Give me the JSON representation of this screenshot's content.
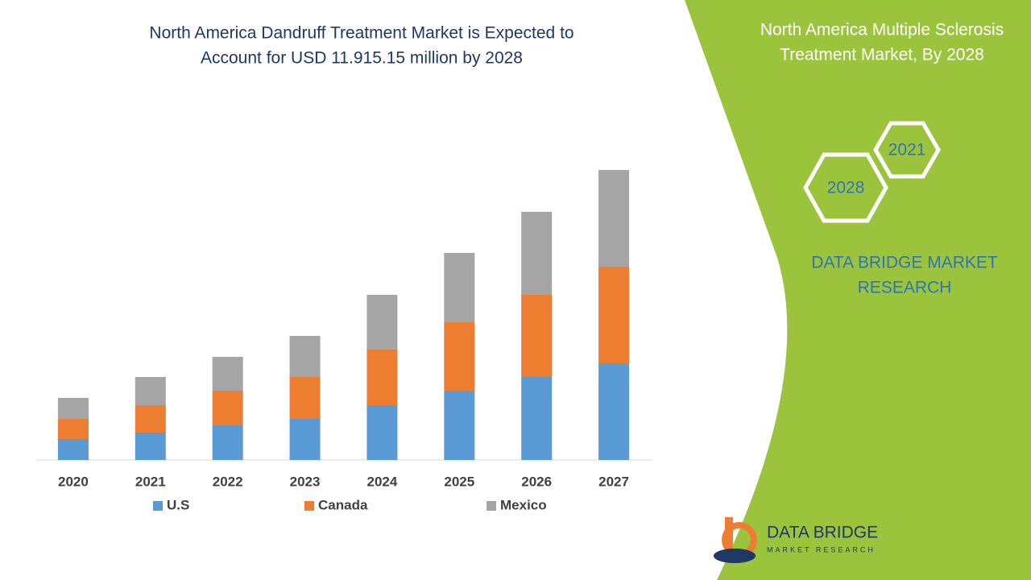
{
  "chart_data": {
    "type": "stacked_bar",
    "title": [
      "North America Dandruff Treatment Market is Expected to",
      "Account for USD 11.915.15 million by 2028"
    ],
    "categories": [
      "2020",
      "2021",
      "2022",
      "2023",
      "2024",
      "2025",
      "2026",
      "2027"
    ],
    "series": [
      {
        "name": "U.S",
        "color": "#5b9bd5",
        "values": [
          26,
          34,
          43,
          51,
          68,
          86,
          103,
          120
        ]
      },
      {
        "name": "Canada",
        "color": "#ed7d31",
        "values": [
          25,
          34,
          43,
          52,
          69,
          85,
          102,
          120
        ]
      },
      {
        "name": "Mexico",
        "color": "#a5a5a5",
        "values": [
          26,
          35,
          42,
          51,
          68,
          86,
          103,
          120
        ]
      }
    ]
  },
  "side_panel": {
    "title": [
      "North America Multiple Sclerosis",
      "Treatment Market, By 2028"
    ],
    "hexagons": [
      "2021",
      "2028"
    ],
    "brand": [
      "DATA BRIDGE MARKET",
      "RESEARCH"
    ]
  },
  "logo": {
    "name": "DATA BRIDGE",
    "tagline": "MARKET RESEARCH"
  }
}
